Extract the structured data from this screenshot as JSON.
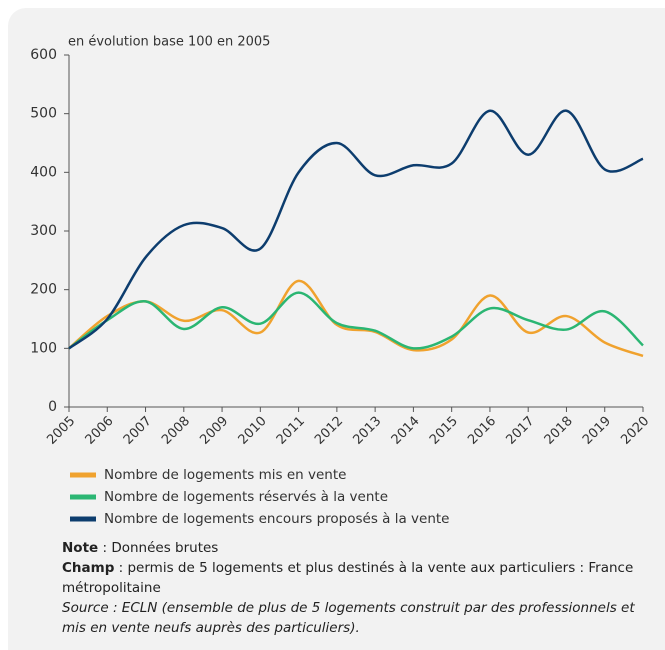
{
  "chart_data": {
    "type": "line",
    "y_axis_label": "en évolution base 100 en 2005",
    "x": [
      2005,
      2006,
      2007,
      2008,
      2009,
      2010,
      2011,
      2012,
      2013,
      2014,
      2015,
      2016,
      2017,
      2018,
      2019,
      2020
    ],
    "xlim": [
      2005,
      2020
    ],
    "xticks": [
      2005,
      2006,
      2007,
      2008,
      2009,
      2010,
      2011,
      2012,
      2013,
      2014,
      2015,
      2016,
      2017,
      2018,
      2019,
      2020
    ],
    "ylim": [
      0,
      600
    ],
    "yticks": [
      0,
      100,
      200,
      300,
      400,
      500,
      600
    ],
    "grid": false,
    "smooth": true,
    "series": [
      {
        "name": "Nombre de logements mis en vente",
        "color": "#f0a22e",
        "values": [
          100,
          155,
          180,
          147,
          165,
          127,
          215,
          140,
          128,
          97,
          115,
          190,
          127,
          155,
          110,
          87
        ]
      },
      {
        "name": "Nombre de logements réservés à la vente",
        "color": "#2bb673",
        "values": [
          100,
          148,
          180,
          133,
          170,
          142,
          195,
          143,
          130,
          100,
          120,
          168,
          148,
          132,
          163,
          105
        ]
      },
      {
        "name": "Nombre de logements encours  proposés à la vente",
        "color": "#0d3d6e",
        "values": [
          100,
          150,
          255,
          310,
          305,
          270,
          400,
          450,
          395,
          412,
          415,
          505,
          430,
          505,
          405,
          423
        ]
      }
    ]
  },
  "notes": {
    "note_label": "Note",
    "note_text": " : Données brutes",
    "champ_label": "Champ",
    "champ_text": " : permis de 5 logements et plus destinés à la vente aux particuliers : France métropolitaine",
    "source": "Source : ECLN (ensemble de plus de 5 logements construit par des professionnels et mis en vente neufs auprès des particuliers)."
  }
}
